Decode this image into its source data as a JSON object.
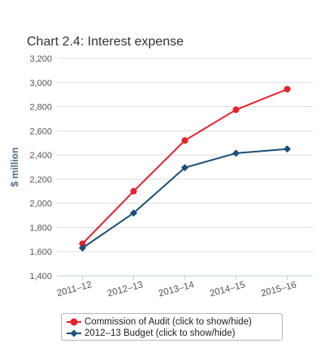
{
  "chart_data": {
    "type": "line",
    "title": "Chart 2.4: Interest expense",
    "xlabel": "",
    "ylabel": "$ million",
    "categories": [
      "2011–12",
      "2012–13",
      "2013–14",
      "2014–15",
      "2015–16"
    ],
    "ylim": [
      1400,
      3200
    ],
    "yticks": [
      "1,400",
      "1,600",
      "1,800",
      "2,000",
      "2,200",
      "2,400",
      "2,600",
      "2,800",
      "3,000",
      "3,200"
    ],
    "grid": true,
    "legend_position": "bottom-center",
    "series": [
      {
        "name": "Commission of Audit (click to show/hide)",
        "color": "#e8202a",
        "marker": "circle",
        "values": [
          1665,
          2100,
          2520,
          2775,
          2945
        ]
      },
      {
        "name": "2012–13 Budget (click to show/hide)",
        "color": "#1b4f7a",
        "marker": "diamond",
        "values": [
          1630,
          1920,
          2295,
          2415,
          2450
        ]
      }
    ]
  }
}
